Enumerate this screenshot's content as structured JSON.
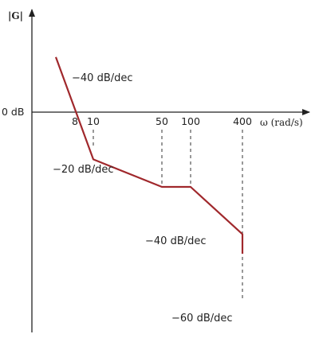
{
  "chart_data": {
    "type": "line",
    "ylabel": "|G|",
    "xlabel": "ω (rad/s)",
    "y_reference_label": "0 dB",
    "x_ticks": [
      "8",
      "10",
      "50",
      "100",
      "400"
    ],
    "colors": {
      "curve": "#a0282c",
      "axes": "#222222"
    },
    "series": [
      {
        "x": [
          5,
          10,
          50,
          100,
          400,
          400
        ],
        "y": [
          28,
          -24,
          -38,
          -38,
          -62,
          -72
        ]
      }
    ],
    "slope_labels": [
      "−40 dB/dec",
      "−20 dB/dec",
      "−40 dB/dec",
      "−60 dB/dec"
    ]
  }
}
